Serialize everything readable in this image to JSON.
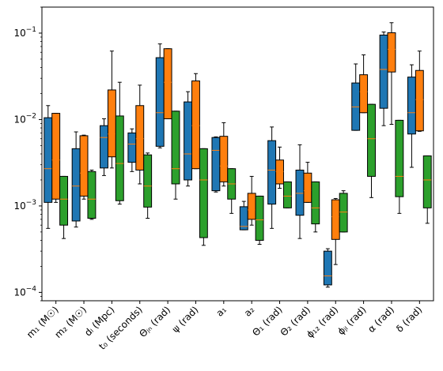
{
  "chart_data": {
    "type": "boxplot",
    "scale": "log",
    "ylim": [
      8e-05,
      0.2
    ],
    "grid": false,
    "legend": "none",
    "yticks": [
      {
        "value": 0.0001,
        "base": "10",
        "exp": "−4"
      },
      {
        "value": 0.001,
        "base": "10",
        "exp": "−3"
      },
      {
        "value": 0.01,
        "base": "10",
        "exp": "−2"
      },
      {
        "value": 0.1,
        "base": "10",
        "exp": "−1"
      }
    ],
    "categories": [
      "m₁ (M☉)",
      "m₂ (M☉)",
      "dₗ (Mpc)",
      "t₀ (seconds)",
      "Θⱼₙ (rad)",
      "ψ (rad)",
      "a₁",
      "a₂",
      "Θ₁ (rad)",
      "Θ₂ (rad)",
      "ϕ₁₂ (rad)",
      "ϕⱼₗ (rad)",
      "α (rad)",
      "δ (rad)"
    ],
    "colors": {
      "blue": "#1f77b4",
      "orange": "#ff7f0e",
      "green": "#2ca02c",
      "median": "#ff7f0e"
    },
    "series": [
      {
        "color": "#1f77b4",
        "boxes": [
          {
            "lo": 0.00055,
            "q1": 0.0011,
            "med": 0.0027,
            "q3": 0.0105,
            "hi": 0.0145
          },
          {
            "lo": 0.00057,
            "q1": 0.00067,
            "med": 0.0017,
            "q3": 0.0046,
            "hi": 0.0072
          },
          {
            "lo": 0.00225,
            "q1": 0.00275,
            "med": 0.0062,
            "q3": 0.0085,
            "hi": 0.0102
          },
          {
            "lo": 0.0025,
            "q1": 0.0032,
            "med": 0.0052,
            "q3": 0.007,
            "hi": 0.0078
          },
          {
            "lo": 0.0047,
            "q1": 0.0049,
            "med": 0.012,
            "q3": 0.052,
            "hi": 0.075
          },
          {
            "lo": 0.0017,
            "q1": 0.002,
            "med": 0.004,
            "q3": 0.016,
            "hi": 0.021
          },
          {
            "lo": 0.00145,
            "q1": 0.0015,
            "med": 0.0044,
            "q3": 0.0062,
            "hi": 0.0063
          },
          {
            "lo": 0.00053,
            "q1": 0.00053,
            "med": 0.00058,
            "q3": 0.00098,
            "hi": 0.00113
          },
          {
            "lo": 0.00055,
            "q1": 0.00105,
            "med": 0.0026,
            "q3": 0.0057,
            "hi": 0.0082
          },
          {
            "lo": 0.00042,
            "q1": 0.00078,
            "med": 0.0014,
            "q3": 0.0026,
            "hi": 0.0051
          },
          {
            "lo": 0.000115,
            "q1": 0.000122,
            "med": 0.000155,
            "q3": 0.0003,
            "hi": 0.00032
          },
          {
            "lo": 0.0075,
            "q1": 0.0075,
            "med": 0.014,
            "q3": 0.0265,
            "hi": 0.044
          },
          {
            "lo": 0.0085,
            "q1": 0.0135,
            "med": 0.038,
            "q3": 0.095,
            "hi": 0.103
          },
          {
            "lo": 0.0028,
            "q1": 0.0068,
            "med": 0.012,
            "q3": 0.031,
            "hi": 0.043
          }
        ]
      },
      {
        "color": "#ff7f0e",
        "boxes": [
          {
            "lo": 0.0011,
            "q1": 0.0012,
            "med": 0.0034,
            "q3": 0.0118,
            "hi": 0.0118
          },
          {
            "lo": 0.0012,
            "q1": 0.0013,
            "med": 0.0024,
            "q3": 0.0065,
            "hi": 0.0066
          },
          {
            "lo": 0.00275,
            "q1": 0.0037,
            "med": 0.0068,
            "q3": 0.022,
            "hi": 0.062
          },
          {
            "lo": 0.0018,
            "q1": 0.0026,
            "med": 0.006,
            "q3": 0.0145,
            "hi": 0.025
          },
          {
            "lo": 0.0102,
            "q1": 0.0102,
            "med": 0.027,
            "q3": 0.066,
            "hi": 0.066
          },
          {
            "lo": 0.0027,
            "q1": 0.0027,
            "med": 0.0085,
            "q3": 0.028,
            "hi": 0.034
          },
          {
            "lo": 0.0017,
            "q1": 0.0019,
            "med": 0.0029,
            "q3": 0.0064,
            "hi": 0.0092
          },
          {
            "lo": 0.0006,
            "q1": 0.0007,
            "med": 0.0009,
            "q3": 0.0014,
            "hi": 0.0022
          },
          {
            "lo": 0.0016,
            "q1": 0.0018,
            "med": 0.0025,
            "q3": 0.0034,
            "hi": 0.0048
          },
          {
            "lo": 0.0011,
            "q1": 0.0011,
            "med": 0.0015,
            "q3": 0.0024,
            "hi": 0.0032
          },
          {
            "lo": 0.00021,
            "q1": 0.00041,
            "med": 0.00075,
            "q3": 0.00118,
            "hi": 0.00122
          },
          {
            "lo": 0.012,
            "q1": 0.012,
            "med": 0.021,
            "q3": 0.033,
            "hi": 0.056
          },
          {
            "lo": 0.0088,
            "q1": 0.0355,
            "med": 0.065,
            "q3": 0.101,
            "hi": 0.132
          },
          {
            "lo": 0.0073,
            "q1": 0.0074,
            "med": 0.017,
            "q3": 0.037,
            "hi": 0.062
          }
        ]
      },
      {
        "color": "#2ca02c",
        "boxes": [
          {
            "lo": 0.00042,
            "q1": 0.0006,
            "med": 0.0012,
            "q3": 0.0022,
            "hi": 0.0022
          },
          {
            "lo": 0.0007,
            "q1": 0.00072,
            "med": 0.0012,
            "q3": 0.0025,
            "hi": 0.0026
          },
          {
            "lo": 0.00105,
            "q1": 0.00115,
            "med": 0.0031,
            "q3": 0.011,
            "hi": 0.027
          },
          {
            "lo": 0.00072,
            "q1": 0.00097,
            "med": 0.0017,
            "q3": 0.0039,
            "hi": 0.0041
          },
          {
            "lo": 0.0012,
            "q1": 0.0018,
            "med": 0.0027,
            "q3": 0.0125,
            "hi": 0.0125
          },
          {
            "lo": 0.00035,
            "q1": 0.00043,
            "med": 0.002,
            "q3": 0.0046,
            "hi": 0.0046
          },
          {
            "lo": 0.00082,
            "q1": 0.0012,
            "med": 0.0018,
            "q3": 0.0027,
            "hi": 0.0027
          },
          {
            "lo": 0.00036,
            "q1": 0.0004,
            "med": 0.00069,
            "q3": 0.0013,
            "hi": 0.0013
          },
          {
            "lo": 0.00095,
            "q1": 0.00095,
            "med": 0.0013,
            "q3": 0.0019,
            "hi": 0.0019
          },
          {
            "lo": 0.0005,
            "q1": 0.00062,
            "med": 0.00095,
            "q3": 0.0019,
            "hi": 0.0019
          },
          {
            "lo": 0.0005,
            "q1": 0.0005,
            "med": 0.00085,
            "q3": 0.0014,
            "hi": 0.0015
          },
          {
            "lo": 0.00125,
            "q1": 0.0022,
            "med": 0.006,
            "q3": 0.015,
            "hi": 0.015
          },
          {
            "lo": 0.00082,
            "q1": 0.00128,
            "med": 0.0022,
            "q3": 0.0098,
            "hi": 0.0098
          },
          {
            "lo": 0.00063,
            "q1": 0.00095,
            "med": 0.002,
            "q3": 0.0038,
            "hi": 0.0038
          }
        ]
      }
    ]
  }
}
